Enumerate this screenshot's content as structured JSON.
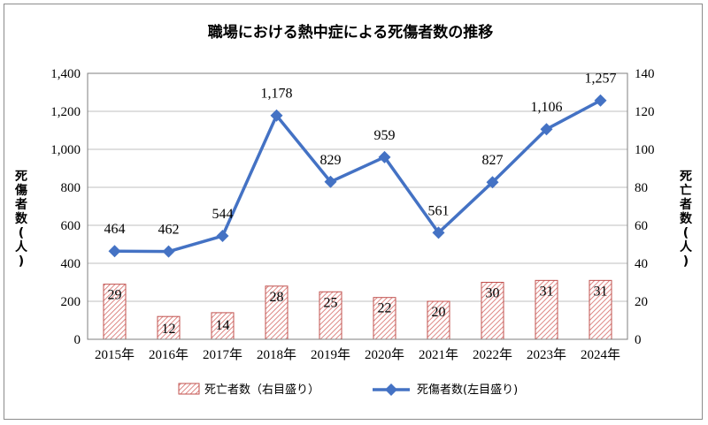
{
  "colors": {
    "line": "#4472c4",
    "bar_stroke": "#c0504d",
    "bar_hatch": "#d66a66",
    "grid": "#bfbfbf",
    "axis": "#7f7f7f"
  },
  "chart_data": {
    "type": "bar+line",
    "title": "職場における熱中症による死傷者数の推移",
    "categories": [
      "2015年",
      "2016年",
      "2017年",
      "2018年",
      "2019年",
      "2020年",
      "2021年",
      "2022年",
      "2023年",
      "2024年"
    ],
    "series": [
      {
        "name": "死亡者数（右目盛り）",
        "type": "bar",
        "axis": "right",
        "values": [
          29,
          12,
          14,
          28,
          25,
          22,
          20,
          30,
          31,
          31
        ],
        "labels": [
          "29",
          "12",
          "14",
          "28",
          "25",
          "22",
          "20",
          "30",
          "31",
          "31"
        ]
      },
      {
        "name": "死傷者数(左目盛り)",
        "type": "line",
        "axis": "left",
        "values": [
          464,
          462,
          544,
          1178,
          829,
          959,
          561,
          827,
          1106,
          1257
        ],
        "labels": [
          "464",
          "462",
          "544",
          "1,178",
          "829",
          "959",
          "561",
          "827",
          "1,106",
          "1,257"
        ]
      }
    ],
    "left_axis": {
      "label": "死傷者数(人)",
      "ylim": [
        0,
        1400
      ],
      "ticks": [
        "0",
        "200",
        "400",
        "600",
        "800",
        "1,000",
        "1,200",
        "1,400"
      ]
    },
    "right_axis": {
      "label": "死亡者数(人)",
      "ylim": [
        0,
        140
      ],
      "ticks": [
        "0",
        "20",
        "40",
        "60",
        "80",
        "100",
        "120",
        "140"
      ]
    },
    "grid": true,
    "legend": "bottom"
  }
}
